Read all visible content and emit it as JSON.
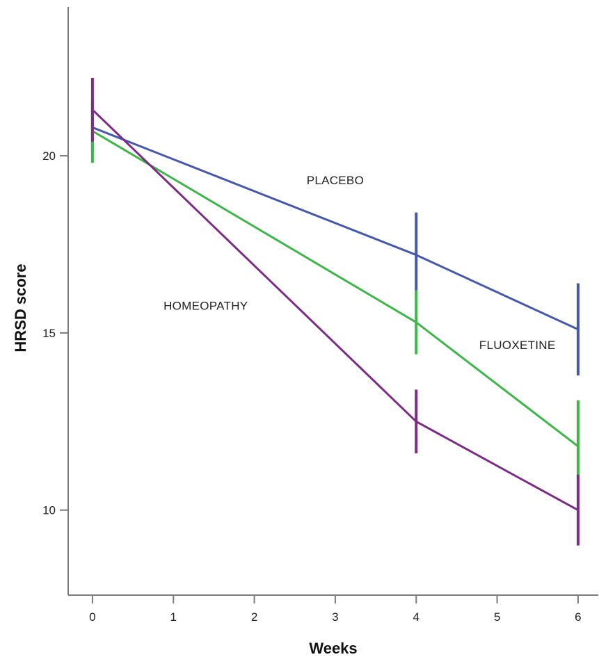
{
  "chart_data": {
    "type": "line",
    "title": "",
    "xlabel": "Weeks",
    "ylabel": "HRSD score",
    "xlim": [
      -0.3,
      6.25
    ],
    "ylim": [
      7.6,
      24.2
    ],
    "x_ticks": [
      0,
      1,
      2,
      3,
      4,
      5,
      6
    ],
    "y_ticks": [
      10,
      15,
      20
    ],
    "grid": false,
    "legend": "none",
    "series": [
      {
        "name": "PLACEBO",
        "color": "#4659a8",
        "x": [
          0,
          4,
          6
        ],
        "y": [
          20.8,
          17.2,
          15.1
        ],
        "error_low": [
          20.1,
          16.2,
          13.8
        ],
        "error_high": [
          21.5,
          18.4,
          16.4
        ]
      },
      {
        "name": "FLUOXETINE",
        "color": "#3fb54b",
        "x": [
          0,
          4,
          6
        ],
        "y": [
          20.7,
          15.3,
          11.8
        ],
        "error_low": [
          19.8,
          14.4,
          10.9
        ],
        "error_high": [
          21.6,
          16.2,
          13.1
        ]
      },
      {
        "name": "HOMEOPATHY",
        "color": "#7b2d84",
        "x": [
          0,
          4,
          6
        ],
        "y": [
          21.3,
          12.5,
          10.0
        ],
        "error_low": [
          20.4,
          11.6,
          9.0
        ],
        "error_high": [
          22.2,
          13.4,
          11.0
        ]
      }
    ],
    "annotations": [
      {
        "text": "PLACEBO",
        "x": 3.0,
        "y": 19.2
      },
      {
        "text": "HOMEOPATHY",
        "x": 1.4,
        "y": 15.65
      },
      {
        "text": "FLUOXETINE",
        "x": 5.25,
        "y": 14.55
      }
    ]
  }
}
